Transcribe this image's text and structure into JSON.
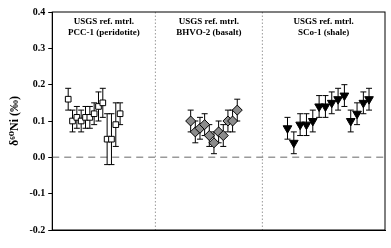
{
  "chart_data": {
    "type": "scatter",
    "y_label": "δ⁶⁰Ni (‰)",
    "xlim": [
      0,
      100
    ],
    "ylim": [
      -0.2,
      0.4
    ],
    "yticks": [
      -0.2,
      -0.1,
      {
        "value": 0,
        "label": "0.0"
      },
      0.1,
      0.2,
      0.3,
      0.4
    ],
    "tick_labels": "y",
    "grid": false,
    "hline": 0,
    "series": [
      {
        "group": "USGS ref. mtrl.",
        "name": "PCC-1 (peridotite)",
        "color": "#ffffff",
        "marker": "square",
        "x": [
          4.8,
          6.1,
          7.4,
          8.7,
          10.0,
          11.3,
          12.6,
          13.9,
          15.2,
          16.5,
          17.8,
          19.1,
          20.4
        ],
        "values": [
          0.16,
          0.1,
          0.11,
          0.1,
          0.11,
          0.11,
          0.12,
          0.14,
          0.15,
          0.05,
          0.05,
          0.09,
          0.12
        ],
        "errors": [
          0.03,
          0.03,
          0.03,
          0.03,
          0.03,
          0.03,
          0.03,
          0.04,
          0.04,
          0.07,
          0.07,
          0.06,
          0.03
        ]
      },
      {
        "group": "USGS ref. mtrl.",
        "name": "BHVO-2 (basalt)",
        "color": "#8c8c8c",
        "marker": "diamond",
        "x": [
          41.6,
          43.0,
          44.4,
          45.8,
          47.2,
          48.6,
          50.0,
          51.4,
          52.8,
          54.2,
          55.6
        ],
        "values": [
          0.1,
          0.07,
          0.08,
          0.09,
          0.06,
          0.04,
          0.07,
          0.06,
          0.1,
          0.1,
          0.13
        ],
        "errors": [
          0.03,
          0.03,
          0.03,
          0.03,
          0.03,
          0.03,
          0.03,
          0.03,
          0.03,
          0.03,
          0.03
        ]
      },
      {
        "group": "USGS ref. mtrl.",
        "name": "SCo-1 (shale)",
        "color": "#000000",
        "marker": "triangle_down",
        "x": [
          70.7,
          72.6,
          74.5,
          76.4,
          78.3,
          80.2,
          82.1,
          84.0,
          85.9,
          87.8,
          89.7,
          91.6,
          93.5,
          95.2
        ],
        "values": [
          0.08,
          0.04,
          0.09,
          0.09,
          0.1,
          0.14,
          0.14,
          0.15,
          0.16,
          0.17,
          0.1,
          0.12,
          0.15,
          0.16
        ],
        "errors": [
          0.03,
          0.03,
          0.03,
          0.03,
          0.03,
          0.03,
          0.03,
          0.03,
          0.03,
          0.03,
          0.03,
          0.03,
          0.03,
          0.03
        ]
      }
    ]
  }
}
